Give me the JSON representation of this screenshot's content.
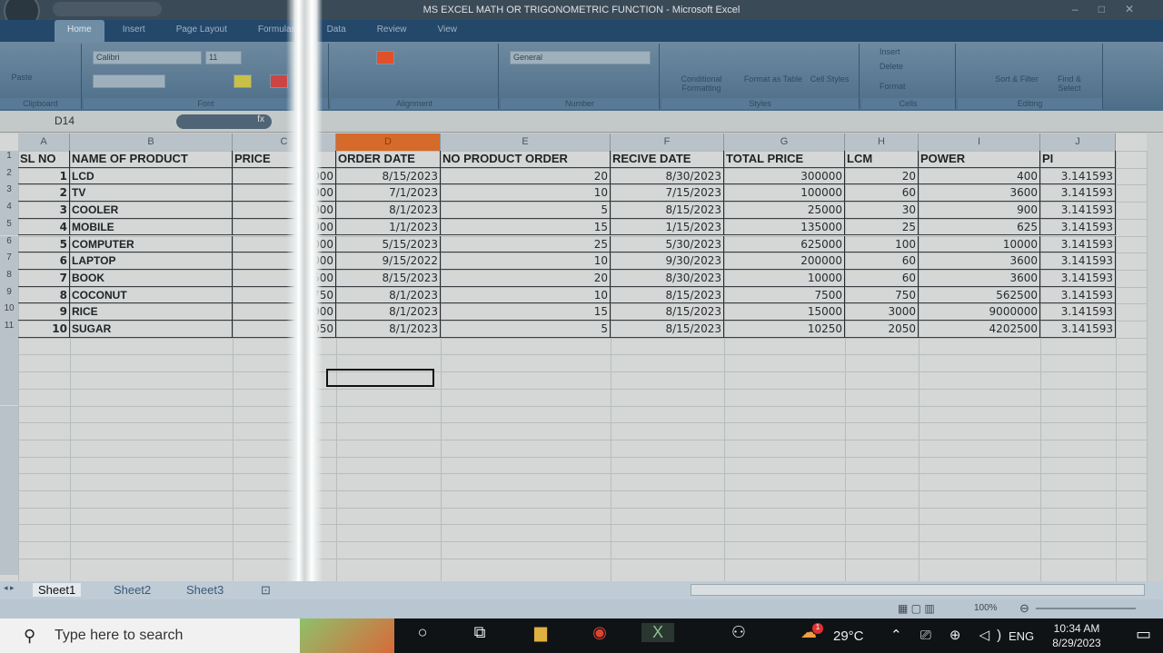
{
  "window": {
    "title": "MS EXCEL MATH OR TRIGONOMETRIC FUNCTION - Microsoft Excel"
  },
  "ribbon": {
    "tabs": [
      "Home",
      "Insert",
      "Page Layout",
      "Formulas",
      "Data",
      "Review",
      "View"
    ],
    "clipboard": {
      "paste": "Paste",
      "label": "Clipboard"
    },
    "font": {
      "name": "Calibri",
      "size": "11",
      "label": "Font"
    },
    "alignment": {
      "label": "Alignment"
    },
    "number": {
      "format": "General",
      "label": "Number"
    },
    "styles": {
      "conditional": "Conditional Formatting",
      "format_table": "Format as Table",
      "cell_styles": "Cell Styles",
      "label": "Styles"
    },
    "cells": {
      "insert": "Insert",
      "delete": "Delete",
      "format": "Format",
      "label": "Cells"
    },
    "editing": {
      "sort": "Sort & Filter",
      "find": "Find & Select",
      "label": "Editing"
    }
  },
  "formula_bar": {
    "name_box": "D14",
    "fx": "fx",
    "value": ""
  },
  "columns": [
    "A",
    "B",
    "C",
    "D",
    "E",
    "F",
    "G",
    "H",
    "I",
    "J"
  ],
  "selected_column": "D",
  "headers": [
    "SL NO",
    "NAME OF PRODUCT",
    "PRICE",
    "ORDER DATE",
    "NO PRODUCT ORDER",
    "RECIVE DATE",
    "TOTAL PRICE",
    "LCM",
    "POWER",
    "PI"
  ],
  "rows": [
    [
      "1",
      "LCD",
      "15000",
      "8/15/2023",
      "20",
      "8/30/2023",
      "300000",
      "20",
      "400",
      "3.141593"
    ],
    [
      "2",
      "TV",
      "10000",
      "7/1/2023",
      "10",
      "7/15/2023",
      "100000",
      "60",
      "3600",
      "3.141593"
    ],
    [
      "3",
      "COOLER",
      "5000",
      "8/1/2023",
      "5",
      "8/15/2023",
      "25000",
      "30",
      "900",
      "3.141593"
    ],
    [
      "4",
      "MOBILE",
      "9000",
      "1/1/2023",
      "15",
      "1/15/2023",
      "135000",
      "25",
      "625",
      "3.141593"
    ],
    [
      "5",
      "COMPUTER",
      "25000",
      "5/15/2023",
      "25",
      "5/30/2023",
      "625000",
      "100",
      "10000",
      "3.141593"
    ],
    [
      "6",
      "LAPTOP",
      "20000",
      "9/15/2022",
      "10",
      "9/30/2023",
      "200000",
      "60",
      "3600",
      "3.141593"
    ],
    [
      "7",
      "BOOK",
      "500",
      "8/15/2023",
      "20",
      "8/30/2023",
      "10000",
      "60",
      "3600",
      "3.141593"
    ],
    [
      "8",
      "COCONUT",
      "750",
      "8/1/2023",
      "10",
      "8/15/2023",
      "7500",
      "750",
      "562500",
      "3.141593"
    ],
    [
      "9",
      "RICE",
      "1000",
      "8/1/2023",
      "15",
      "8/15/2023",
      "15000",
      "3000",
      "9000000",
      "3.141593"
    ],
    [
      "10",
      "SUGAR",
      "2050",
      "8/1/2023",
      "5",
      "8/15/2023",
      "10250",
      "2050",
      "4202500",
      "3.141593"
    ]
  ],
  "sheets": [
    "Sheet1",
    "Sheet2",
    "Sheet3"
  ],
  "active_sheet": "Sheet1",
  "status": {
    "zoom": "100%"
  },
  "taskbar": {
    "search_placeholder": "Type here to search",
    "weather": "29°C",
    "language": "ENG",
    "time": "10:34 AM",
    "date": "8/29/2023",
    "weather_badge": "1"
  }
}
